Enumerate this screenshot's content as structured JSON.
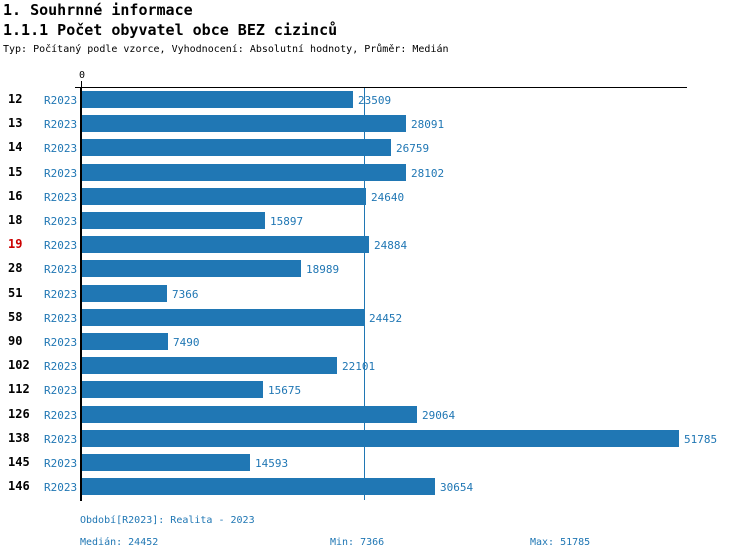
{
  "header": {
    "title": "1. Souhrnné informace",
    "subtitle": "1.1.1 Počet obyvatel obce BEZ cizinců",
    "meta": "Typ: Počítaný podle vzorce, Vyhodnocení: Absolutní hodnoty, Průměr: Medián"
  },
  "chart_data": {
    "type": "bar",
    "orientation": "horizontal",
    "title": "1.1.1 Počet obyvatel obce BEZ cizinců",
    "axis_zero_label": "0",
    "series_label": "R2023",
    "categories": [
      "12",
      "13",
      "14",
      "15",
      "16",
      "18",
      "19",
      "28",
      "51",
      "58",
      "90",
      "102",
      "112",
      "126",
      "138",
      "145",
      "146"
    ],
    "values": [
      23509,
      28091,
      26759,
      28102,
      24640,
      15897,
      24884,
      18989,
      7366,
      24452,
      7490,
      22101,
      15675,
      29064,
      51785,
      14593,
      30654
    ],
    "highlighted_category": "19",
    "median_value": 24452,
    "min_value": 7366,
    "max_value": 51785,
    "xlim": [
      0,
      51785
    ],
    "grid": false,
    "legend_position": "none"
  },
  "footer": {
    "period": "Období[R2023]: Realita - 2023",
    "median": "Medián: 24452",
    "min": "Min: 7366",
    "max": "Max: 51785"
  },
  "colors": {
    "bar_blue": "#2077b4",
    "text_blue": "#2077b4",
    "highlight_red": "#cc0000",
    "axis_black": "#000000"
  }
}
